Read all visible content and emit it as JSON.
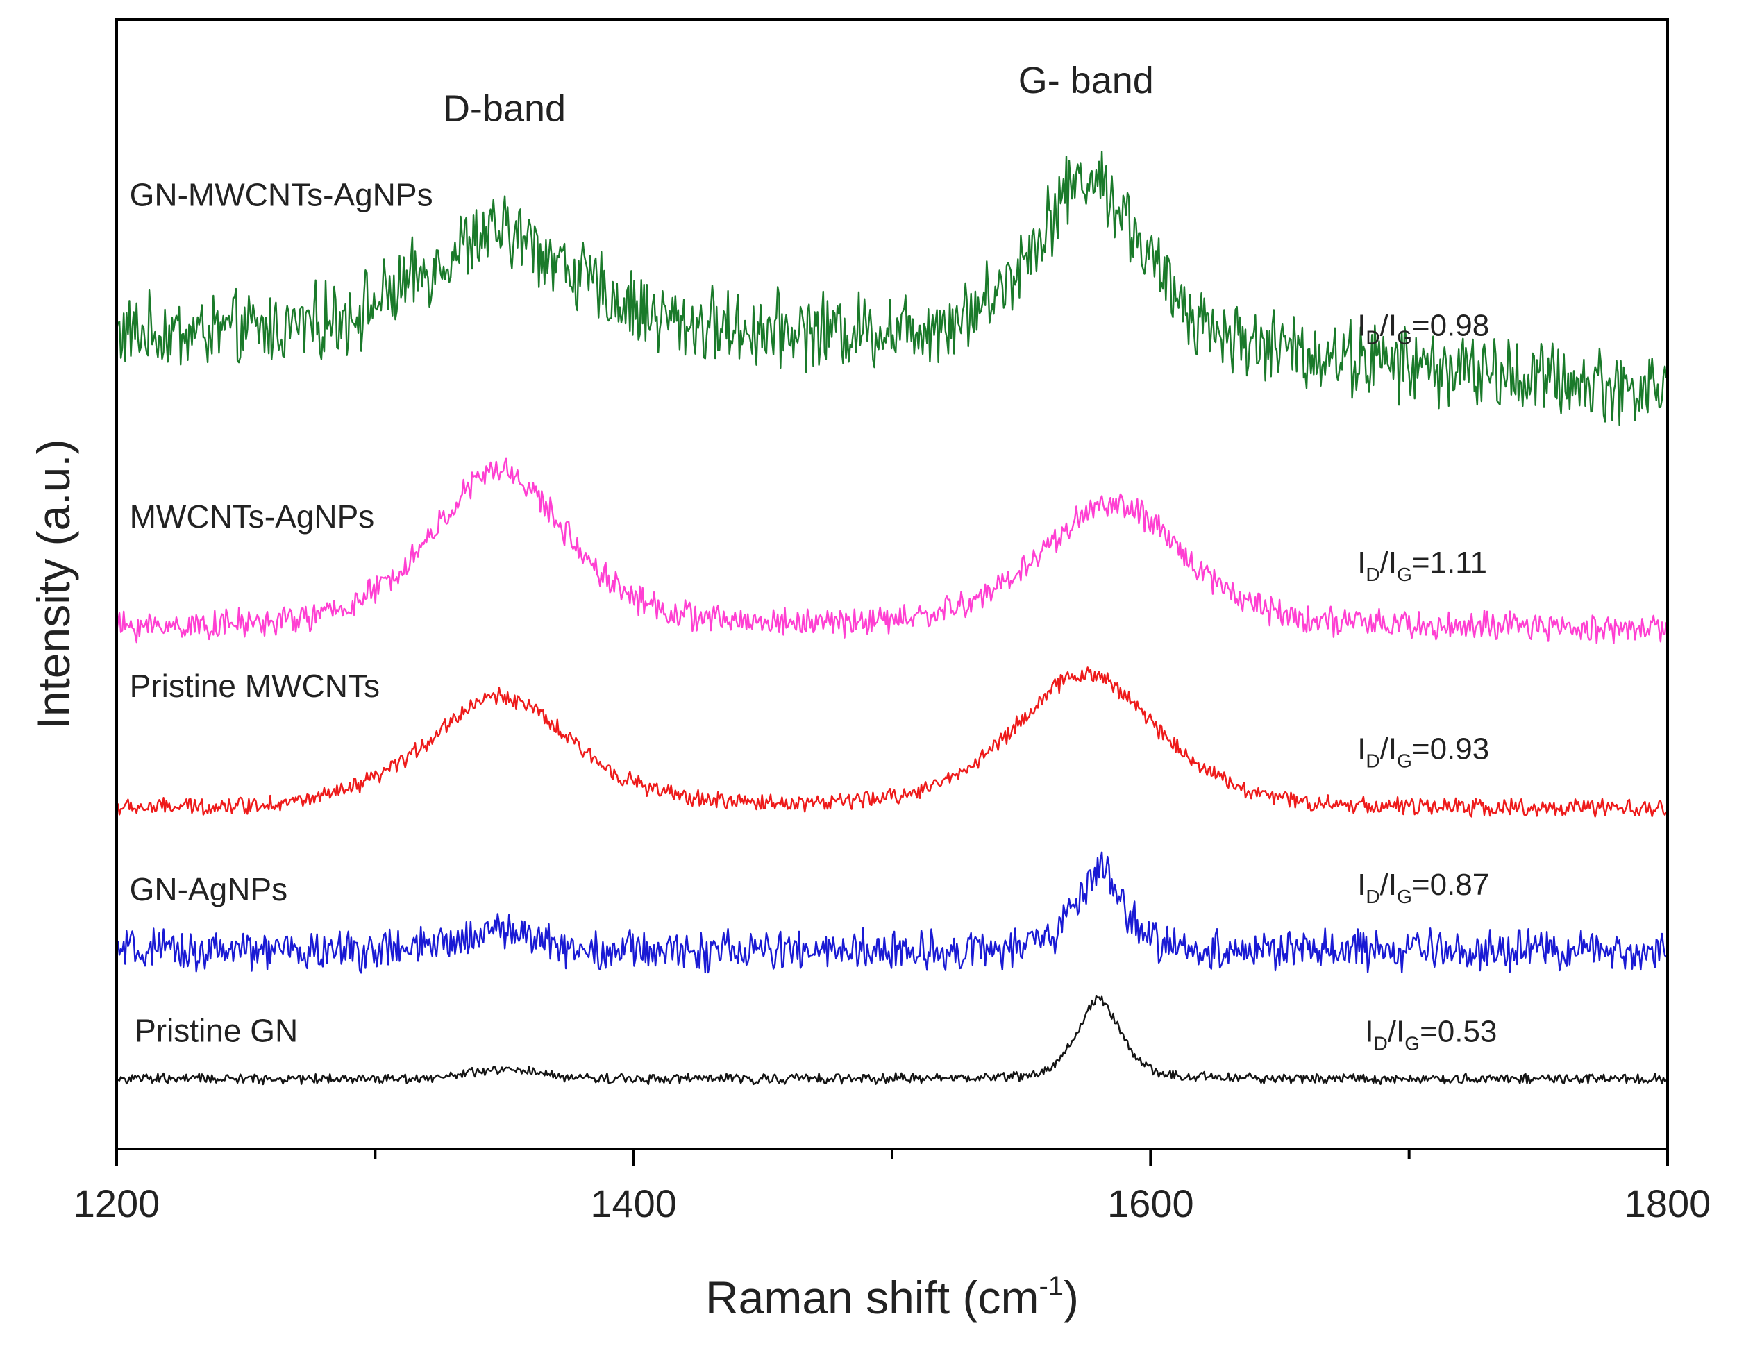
{
  "chart_data": {
    "type": "line",
    "title": "",
    "xlabel": "Raman shift (cm",
    "xlabel_sup": "-1",
    "xlabel_close": ")",
    "ylabel": "Intensity (a.u.)",
    "xlim": [
      1200,
      1800
    ],
    "ylim": [
      0,
      100
    ],
    "x_ticks": [
      1200,
      1400,
      1600,
      1800
    ],
    "x_minor_ticks": [
      1300,
      1500,
      1700
    ],
    "band_labels": [
      {
        "text": "D-band",
        "x": 1350,
        "y": 91.0
      },
      {
        "text": "G- band",
        "x": 1575,
        "y": 93.5
      }
    ],
    "series": [
      {
        "name": "GN-MWCNTs-AgNPs",
        "color": "#1a7a2a",
        "baseline": 72,
        "d_peak": 1348,
        "d_height": 9,
        "d_width": 32,
        "g_peak": 1576,
        "g_height": 14,
        "g_width": 22,
        "tail_slope": -5,
        "noise": 2.6,
        "ratio_label": "I",
        "ratio_sub_d": "D",
        "ratio_slash": "/I",
        "ratio_sub_g": "G",
        "ratio_value": "=0.98",
        "ratio_x": 1680,
        "ratio_y": 72
      },
      {
        "name": "MWCNTs-AgNPs",
        "color": "#ff3fd2",
        "baseline": 46,
        "d_peak": 1348,
        "d_height": 14,
        "d_width": 28,
        "g_peak": 1585,
        "g_height": 11,
        "g_width": 30,
        "tail_slope": 0,
        "noise": 1.0,
        "ratio_label": "I",
        "ratio_sub_d": "D",
        "ratio_slash": "/I",
        "ratio_sub_g": "G",
        "ratio_value": "=1.11",
        "ratio_x": 1680,
        "ratio_y": 51
      },
      {
        "name": "Pristine MWCNTs",
        "color": "#ee1b1b",
        "baseline": 30,
        "d_peak": 1348,
        "d_height": 10,
        "d_width": 30,
        "g_peak": 1575,
        "g_height": 12,
        "g_width": 30,
        "tail_slope": 0,
        "noise": 0.6,
        "ratio_label": "I",
        "ratio_sub_d": "D",
        "ratio_slash": "/I",
        "ratio_sub_g": "G",
        "ratio_value": "=0.93",
        "ratio_x": 1680,
        "ratio_y": 34.5
      },
      {
        "name": "GN-AgNPs",
        "color": "#1a1ad4",
        "baseline": 17.5,
        "d_peak": 1348,
        "d_height": 2,
        "d_width": 14,
        "g_peak": 1580,
        "g_height": 7,
        "g_width": 10,
        "tail_slope": 0,
        "noise": 1.4,
        "ratio_label": "I",
        "ratio_sub_d": "D",
        "ratio_slash": "/I",
        "ratio_sub_g": "G",
        "ratio_value": "=0.87",
        "ratio_x": 1680,
        "ratio_y": 22.5
      },
      {
        "name": "Pristine GN",
        "color": "#151515",
        "baseline": 6.2,
        "d_peak": 1350,
        "d_height": 0.8,
        "d_width": 14,
        "g_peak": 1580,
        "g_height": 7,
        "g_width": 9,
        "tail_slope": 0,
        "noise": 0.35,
        "ratio_label": "I",
        "ratio_sub_d": "D",
        "ratio_slash": "/I",
        "ratio_sub_g": "G",
        "ratio_value": "=0.53",
        "ratio_x": 1683,
        "ratio_y": 9.5
      }
    ],
    "series_label_positions": [
      {
        "x": 1205,
        "y": 83.5
      },
      {
        "x": 1205,
        "y": 55.0
      },
      {
        "x": 1205,
        "y": 40.0
      },
      {
        "x": 1205,
        "y": 22.0
      },
      {
        "x": 1207,
        "y": 9.5
      }
    ]
  }
}
